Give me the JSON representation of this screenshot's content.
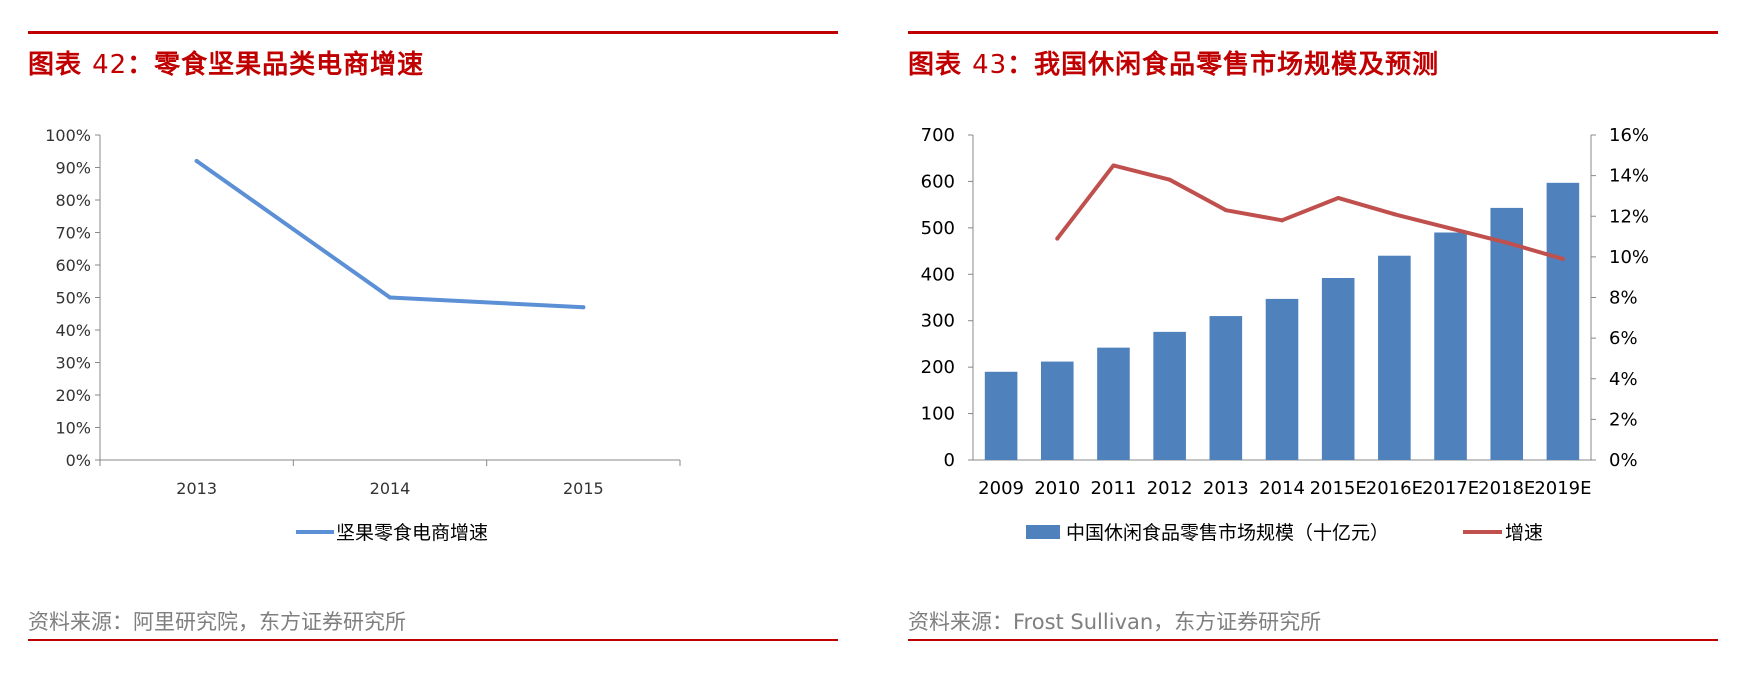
{
  "left": {
    "title": {
      "prefix": "图表",
      "number": "42",
      "text": "：零食坚果品类电商增速"
    },
    "source": "资料来源：阿里研究院，东方证券研究所",
    "chart_data": {
      "type": "line",
      "categories": [
        "2013",
        "2014",
        "2015"
      ],
      "series": [
        {
          "name": "坚果零食电商增速",
          "values": [
            92,
            50,
            47
          ],
          "color": "#5b8fd6"
        }
      ],
      "yticks": [
        "0%",
        "10%",
        "20%",
        "30%",
        "40%",
        "50%",
        "60%",
        "70%",
        "80%",
        "90%",
        "100%"
      ],
      "ylim": [
        0,
        100
      ],
      "legend": "bottom"
    }
  },
  "right": {
    "title": {
      "prefix": "图表",
      "number": "43",
      "text": "：我国休闲食品零售市场规模及预测"
    },
    "source": "资料来源：Frost Sullivan，东方证券研究所",
    "chart_data": {
      "type": "bar",
      "categories": [
        "2009",
        "2010",
        "2011",
        "2012",
        "2013",
        "2014",
        "2015E",
        "2016E",
        "2017E",
        "2018E",
        "2019E"
      ],
      "series": [
        {
          "name": "中国休闲食品零售市场规模（十亿元）",
          "type": "bar",
          "axis": "left",
          "color": "#4f81bd",
          "values": [
            190,
            212,
            242,
            276,
            310,
            347,
            392,
            440,
            490,
            543,
            597
          ]
        },
        {
          "name": "增速",
          "type": "line",
          "axis": "right",
          "color": "#c0504d",
          "values": [
            null,
            10.9,
            14.5,
            13.8,
            12.3,
            11.8,
            12.9,
            12.1,
            11.4,
            10.7,
            9.9
          ]
        }
      ],
      "yticks_left": [
        "0",
        "100",
        "200",
        "300",
        "400",
        "500",
        "600",
        "700"
      ],
      "ylim_left": [
        0,
        700
      ],
      "yticks_right": [
        "0%",
        "2%",
        "4%",
        "6%",
        "8%",
        "10%",
        "12%",
        "14%",
        "16%"
      ],
      "ylim_right": [
        0,
        16
      ],
      "legend": "bottom"
    }
  }
}
